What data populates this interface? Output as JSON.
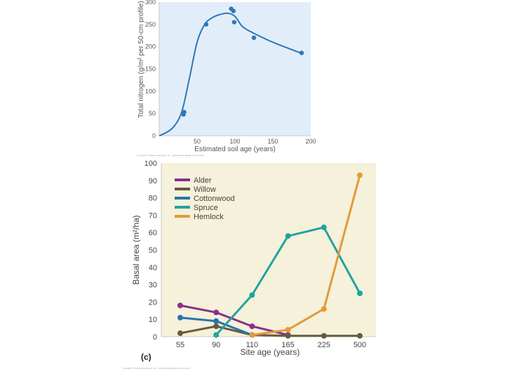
{
  "chart_data": [
    {
      "type": "scatter",
      "title": "",
      "xlabel": "Estimated soil age (years)",
      "ylabel": "Total nitrogen (g/m² per 50-cm profile)",
      "xlim": [
        0,
        200
      ],
      "ylim": [
        0,
        300
      ],
      "xticks": [
        "50",
        "100",
        "150",
        "200"
      ],
      "yticks": [
        "0",
        "50",
        "100",
        "150",
        "200",
        "250",
        "300"
      ],
      "points": {
        "x": [
          32,
          33,
          62,
          95,
          98,
          99,
          125,
          188
        ],
        "y": [
          48,
          53,
          250,
          285,
          280,
          255,
          220,
          186
        ]
      },
      "fit_curve": {
        "x": [
          0,
          10,
          20,
          30,
          40,
          50,
          60,
          70,
          80,
          90,
          100,
          110,
          125,
          150,
          188
        ],
        "y": [
          0,
          8,
          22,
          55,
          130,
          210,
          250,
          265,
          272,
          275,
          268,
          245,
          230,
          210,
          185
        ]
      },
      "background_color": "#e1eef9",
      "marker_color": "#2f76b8",
      "credit": "Copyright © Pearson Education, Inc., publishing as Benjamin Cummings"
    },
    {
      "type": "line",
      "panel_label": "(c)",
      "xlabel": "Site age (years)",
      "ylabel": "Basal area (m²/ha)",
      "categories": [
        "55",
        "90",
        "110",
        "165",
        "225",
        "500"
      ],
      "ylim": [
        0,
        100
      ],
      "yticks": [
        "0",
        "10",
        "20",
        "30",
        "40",
        "50",
        "60",
        "70",
        "80",
        "90",
        "100"
      ],
      "background_color": "#f5f1da",
      "series": [
        {
          "name": "Alder",
          "color": "#8a2f8b",
          "x": [
            "55",
            "90",
            "110",
            "165"
          ],
          "values": [
            18,
            14,
            6,
            1
          ]
        },
        {
          "name": "Willow",
          "color": "#6a5a3c",
          "x": [
            "55",
            "90",
            "110",
            "165",
            "225",
            "500"
          ],
          "values": [
            2,
            6,
            1,
            0.5,
            0.5,
            0.5
          ]
        },
        {
          "name": "Cottonwood",
          "color": "#2673b0",
          "x": [
            "55",
            "90",
            "110"
          ],
          "values": [
            11,
            9,
            1
          ]
        },
        {
          "name": "Spruce",
          "color": "#1fa3a1",
          "x": [
            "90",
            "110",
            "165",
            "225",
            "500"
          ],
          "values": [
            1,
            24,
            58,
            63,
            25
          ]
        },
        {
          "name": "Hemlock",
          "color": "#e39a3a",
          "x": [
            "110",
            "165",
            "225",
            "500"
          ],
          "values": [
            1,
            4,
            16,
            93
          ]
        }
      ],
      "credit": "Copyright © Pearson Education, Inc., publishing as Benjamin Cummings"
    }
  ]
}
